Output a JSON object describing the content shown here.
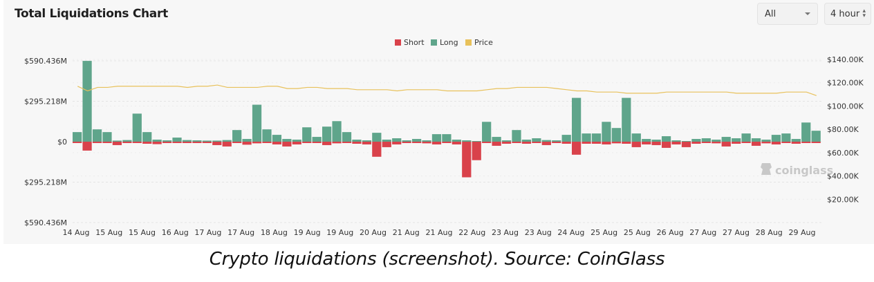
{
  "header": {
    "title": "Total Liquidations Chart"
  },
  "controls": {
    "range_value": "All",
    "interval_value": "4 hour"
  },
  "caption": "Crypto liquidations (screenshot). Source: CoinGlass",
  "watermark": "coinglass",
  "colors": {
    "short": "#d9424b",
    "long": "#5fa58b",
    "price": "#e8c15a"
  },
  "chart_data": {
    "type": "bar",
    "title": "Total Liquidations Chart",
    "legend": {
      "position": "top-center",
      "items": [
        "Short",
        "Long",
        "Price"
      ]
    },
    "grid": true,
    "y_left": {
      "ticks": [
        "$590.436M",
        "$295.218M",
        "$0",
        "$295.218M",
        "$590.436M"
      ],
      "tick_values": [
        590.436,
        295.218,
        0,
        -295.218,
        -590.436
      ],
      "range": [
        -590.436,
        590.436
      ],
      "unit": "M"
    },
    "y_right": {
      "ticks": [
        "$140.00K",
        "$120.00K",
        "$100.00K",
        "$80.00K",
        "$60.00K",
        "$40.00K",
        "$20.00K"
      ],
      "tick_values": [
        140,
        120,
        100,
        80,
        60,
        40,
        20
      ],
      "range": [
        0,
        140
      ],
      "unit": "K"
    },
    "x_labels": [
      "14 Aug",
      "15 Aug",
      "15 Aug",
      "16 Aug",
      "17 Aug",
      "17 Aug",
      "18 Aug",
      "19 Aug",
      "19 Aug",
      "20 Aug",
      "21 Aug",
      "21 Aug",
      "22 Aug",
      "23 Aug",
      "23 Aug",
      "24 Aug",
      "25 Aug",
      "25 Aug",
      "26 Aug",
      "27 Aug",
      "27 Aug",
      "28 Aug",
      "29 Aug"
    ],
    "series": [
      {
        "name": "Long",
        "values": [
          70,
          590,
          90,
          70,
          8,
          12,
          205,
          70,
          15,
          10,
          30,
          12,
          10,
          8,
          8,
          12,
          85,
          20,
          270,
          90,
          50,
          20,
          15,
          105,
          35,
          110,
          150,
          70,
          15,
          10,
          65,
          15,
          25,
          10,
          20,
          10,
          55,
          55,
          15,
          10,
          5,
          145,
          35,
          10,
          85,
          15,
          25,
          12,
          10,
          50,
          320,
          60,
          60,
          145,
          100,
          320,
          60,
          20,
          15,
          40,
          10,
          5,
          20,
          25,
          15,
          35,
          25,
          60,
          25,
          15,
          50,
          60,
          20,
          140,
          80
        ]
      },
      {
        "name": "Short",
        "values": [
          -10,
          -65,
          -10,
          -10,
          -25,
          -10,
          -10,
          -15,
          -18,
          -10,
          -10,
          -10,
          -10,
          -10,
          -25,
          -35,
          -10,
          -22,
          -12,
          -10,
          -20,
          -35,
          -20,
          -10,
          -10,
          -25,
          -12,
          -10,
          -15,
          -20,
          -110,
          -40,
          -20,
          -10,
          -10,
          -12,
          -20,
          -10,
          -20,
          -260,
          -135,
          -10,
          -30,
          -15,
          -10,
          -15,
          -10,
          -25,
          -10,
          -15,
          -95,
          -15,
          -15,
          -20,
          -12,
          -15,
          -40,
          -20,
          -25,
          -45,
          -20,
          -40,
          -15,
          -10,
          -12,
          -35,
          -15,
          -10,
          -30,
          -12,
          -20,
          -10,
          -15,
          -10,
          -10
        ]
      },
      {
        "name": "Price",
        "axis": "right",
        "values": [
          117,
          113,
          116,
          116,
          117,
          117,
          117,
          117,
          117,
          117,
          117,
          116,
          117,
          117,
          118,
          116,
          116,
          116,
          116,
          117,
          117,
          115,
          115,
          116,
          116,
          115,
          115,
          115,
          114,
          114,
          114,
          114,
          113,
          114,
          114,
          114,
          114,
          113,
          113,
          113,
          113,
          114,
          115,
          115,
          116,
          116,
          116,
          116,
          115,
          114,
          113,
          113,
          112,
          112,
          112,
          111,
          111,
          111,
          111,
          112,
          112,
          112,
          112,
          112,
          112,
          112,
          111,
          111,
          111,
          111,
          111,
          112,
          112,
          112,
          109
        ]
      }
    ]
  }
}
